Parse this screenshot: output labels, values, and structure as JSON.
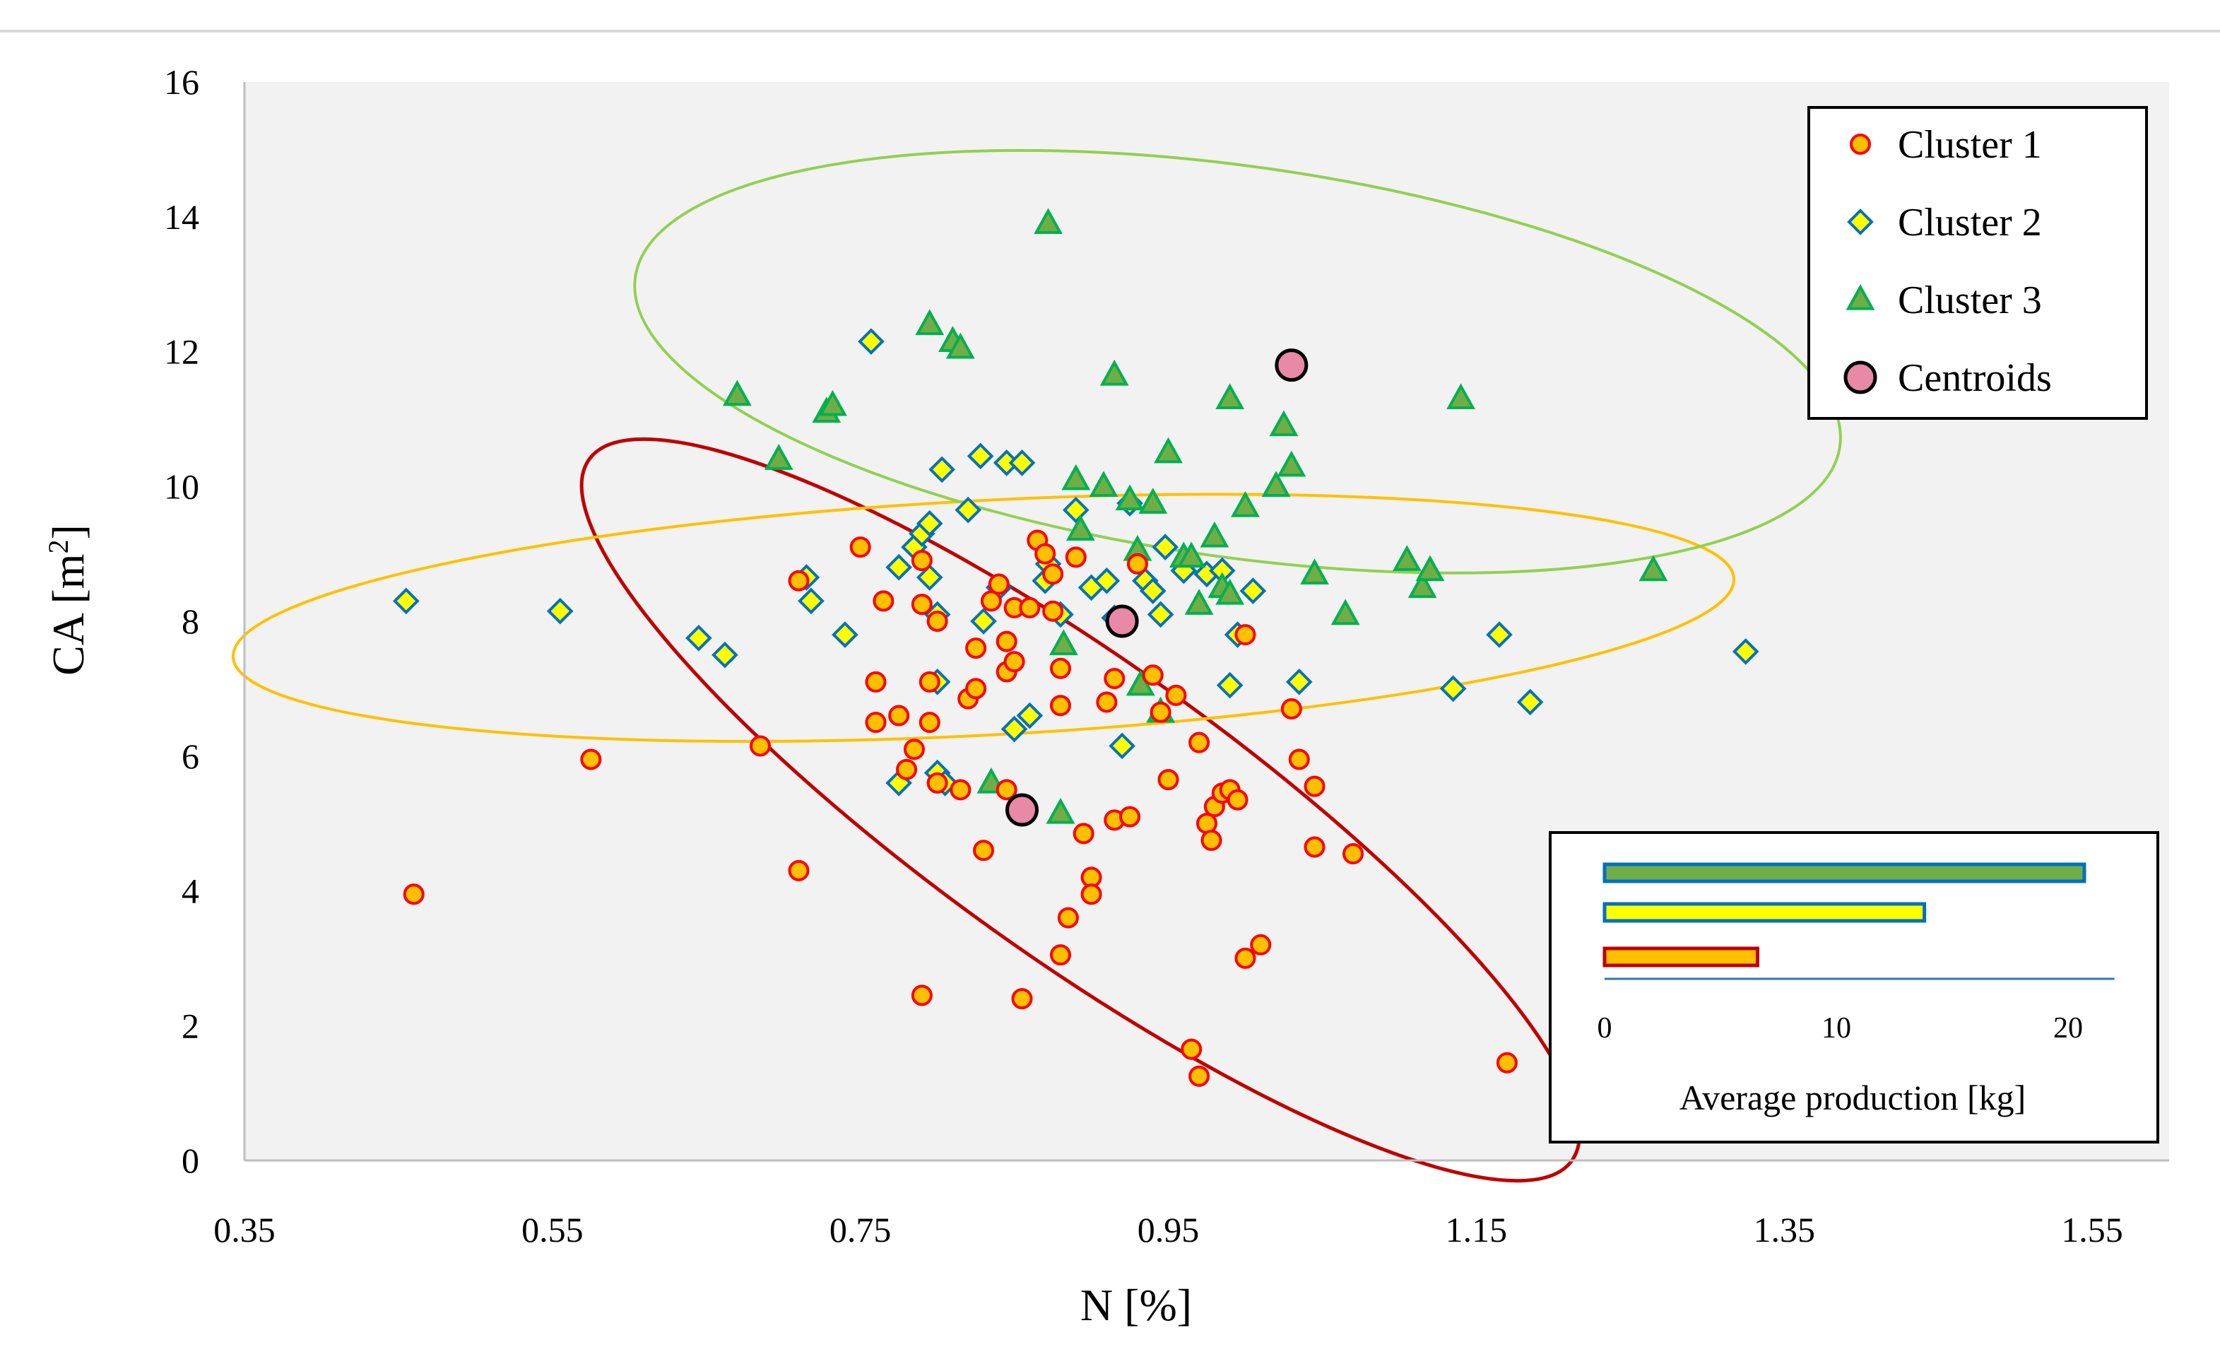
{
  "chart_data": {
    "type": "scatter",
    "xlabel": "N [%]",
    "ylabel": "CA [m²]",
    "ylabel_parts": {
      "base": "CA [m",
      "sup": "2",
      "close": "]"
    },
    "xlim": [
      0.35,
      1.6
    ],
    "ylim": [
      0,
      16
    ],
    "x_ticks": [
      0.35,
      0.55,
      0.75,
      0.95,
      1.15,
      1.35,
      1.55
    ],
    "x_tick_labels": [
      "0.35",
      "0.55",
      "0.75",
      "0.95",
      "1.15",
      "1.35",
      "1.55"
    ],
    "y_ticks": [
      0,
      2,
      4,
      6,
      8,
      10,
      12,
      14,
      16
    ],
    "y_tick_labels": [
      "0",
      "2",
      "4",
      "6",
      "8",
      "10",
      "12",
      "14",
      "16"
    ],
    "grid": false,
    "legend_position": "top-right",
    "legend": [
      "Cluster 1",
      "Cluster 2",
      "Cluster 3",
      "Centroids"
    ],
    "colors": {
      "cluster1_fill": "#ffc000",
      "cluster1_edge": "#ff0000",
      "cluster2_fill": "#ffff00",
      "cluster2_edge": "#0070c0",
      "cluster3_fill": "#70ad47",
      "cluster3_edge": "#00b050",
      "centroid_fill": "#e889a8",
      "centroid_edge": "#000000",
      "ellipse1": "#c00000",
      "ellipse2": "#ffc000",
      "ellipse3": "#92d050",
      "plot_bg": "#f2f2f2"
    },
    "series": [
      {
        "name": "Cluster 1",
        "marker": "circle",
        "points": [
          [
            0.46,
            3.95
          ],
          [
            0.575,
            5.95
          ],
          [
            0.685,
            6.15
          ],
          [
            0.71,
            8.6
          ],
          [
            0.71,
            4.3
          ],
          [
            0.75,
            9.1
          ],
          [
            0.76,
            7.1
          ],
          [
            0.76,
            6.5
          ],
          [
            0.765,
            8.3
          ],
          [
            0.775,
            6.6
          ],
          [
            0.78,
            5.8
          ],
          [
            0.785,
            6.1
          ],
          [
            0.79,
            8.9
          ],
          [
            0.79,
            8.25
          ],
          [
            0.795,
            7.1
          ],
          [
            0.795,
            6.5
          ],
          [
            0.8,
            8.0
          ],
          [
            0.8,
            5.6
          ],
          [
            0.79,
            2.45
          ],
          [
            0.815,
            5.5
          ],
          [
            0.82,
            6.85
          ],
          [
            0.825,
            7.6
          ],
          [
            0.825,
            7.0
          ],
          [
            0.83,
            4.6
          ],
          [
            0.835,
            8.3
          ],
          [
            0.84,
            8.55
          ],
          [
            0.845,
            7.7
          ],
          [
            0.845,
            7.25
          ],
          [
            0.845,
            5.5
          ],
          [
            0.85,
            8.2
          ],
          [
            0.85,
            7.4
          ],
          [
            0.855,
            2.4
          ],
          [
            0.86,
            8.2
          ],
          [
            0.865,
            9.2
          ],
          [
            0.87,
            9.0
          ],
          [
            0.875,
            8.7
          ],
          [
            0.875,
            8.15
          ],
          [
            0.88,
            7.3
          ],
          [
            0.88,
            6.75
          ],
          [
            0.88,
            3.05
          ],
          [
            0.885,
            3.6
          ],
          [
            0.89,
            8.95
          ],
          [
            0.895,
            4.85
          ],
          [
            0.9,
            4.2
          ],
          [
            0.9,
            3.95
          ],
          [
            0.91,
            6.8
          ],
          [
            0.915,
            7.15
          ],
          [
            0.915,
            5.05
          ],
          [
            0.925,
            5.1
          ],
          [
            0.93,
            8.85
          ],
          [
            0.94,
            7.2
          ],
          [
            0.945,
            6.65
          ],
          [
            0.95,
            5.65
          ],
          [
            0.955,
            6.9
          ],
          [
            0.965,
            1.65
          ],
          [
            0.97,
            6.2
          ],
          [
            0.975,
            5.0
          ],
          [
            0.97,
            1.25
          ],
          [
            0.978,
            4.75
          ],
          [
            0.98,
            5.25
          ],
          [
            0.985,
            5.45
          ],
          [
            0.99,
            5.5
          ],
          [
            0.995,
            5.35
          ],
          [
            1.0,
            3.0
          ],
          [
            1.0,
            7.8
          ],
          [
            1.01,
            3.2
          ],
          [
            1.03,
            6.7
          ],
          [
            1.035,
            5.95
          ],
          [
            1.045,
            5.55
          ],
          [
            1.045,
            4.65
          ],
          [
            1.07,
            4.55
          ],
          [
            1.17,
            1.45
          ]
        ]
      },
      {
        "name": "Cluster 2",
        "marker": "diamond",
        "points": [
          [
            0.455,
            8.3
          ],
          [
            0.555,
            8.15
          ],
          [
            0.645,
            7.75
          ],
          [
            0.662,
            7.5
          ],
          [
            0.715,
            8.65
          ],
          [
            0.718,
            8.3
          ],
          [
            0.74,
            7.8
          ],
          [
            0.757,
            12.15
          ],
          [
            0.775,
            8.8
          ],
          [
            0.775,
            5.6
          ],
          [
            0.785,
            9.1
          ],
          [
            0.79,
            9.3
          ],
          [
            0.795,
            9.45
          ],
          [
            0.795,
            8.65
          ],
          [
            0.8,
            8.1
          ],
          [
            0.8,
            7.1
          ],
          [
            0.803,
            10.25
          ],
          [
            0.8,
            5.75
          ],
          [
            0.805,
            5.6
          ],
          [
            0.82,
            9.65
          ],
          [
            0.828,
            10.45
          ],
          [
            0.83,
            8.0
          ],
          [
            0.84,
            8.5
          ],
          [
            0.845,
            10.35
          ],
          [
            0.855,
            10.35
          ],
          [
            0.85,
            6.4
          ],
          [
            0.86,
            6.6
          ],
          [
            0.87,
            8.6
          ],
          [
            0.872,
            8.85
          ],
          [
            0.88,
            8.1
          ],
          [
            0.89,
            9.65
          ],
          [
            0.9,
            8.5
          ],
          [
            0.91,
            8.6
          ],
          [
            0.915,
            8.05
          ],
          [
            0.92,
            6.15
          ],
          [
            0.925,
            9.75
          ],
          [
            0.935,
            8.6
          ],
          [
            0.94,
            8.45
          ],
          [
            0.945,
            8.1
          ],
          [
            0.948,
            9.1
          ],
          [
            0.96,
            8.75
          ],
          [
            0.975,
            8.7
          ],
          [
            0.985,
            8.75
          ],
          [
            0.99,
            7.05
          ],
          [
            0.995,
            7.8
          ],
          [
            1.005,
            8.45
          ],
          [
            1.035,
            7.1
          ],
          [
            1.135,
            7.0
          ],
          [
            1.165,
            7.8
          ],
          [
            1.185,
            6.8
          ],
          [
            1.325,
            7.55
          ]
        ]
      },
      {
        "name": "Cluster 3",
        "marker": "triangle",
        "points": [
          [
            0.67,
            11.35
          ],
          [
            0.697,
            10.4
          ],
          [
            0.728,
            11.1
          ],
          [
            0.732,
            11.2
          ],
          [
            0.795,
            12.4
          ],
          [
            0.81,
            12.15
          ],
          [
            0.815,
            12.05
          ],
          [
            0.835,
            5.6
          ],
          [
            0.872,
            13.9
          ],
          [
            0.88,
            5.15
          ],
          [
            0.882,
            7.65
          ],
          [
            0.89,
            10.1
          ],
          [
            0.893,
            9.35
          ],
          [
            0.908,
            10.0
          ],
          [
            0.915,
            11.65
          ],
          [
            0.925,
            9.8
          ],
          [
            0.93,
            9.05
          ],
          [
            0.932,
            7.05
          ],
          [
            0.94,
            9.75
          ],
          [
            0.945,
            6.65
          ],
          [
            0.95,
            10.5
          ],
          [
            0.96,
            8.95
          ],
          [
            0.965,
            8.95
          ],
          [
            0.97,
            8.25
          ],
          [
            0.98,
            9.25
          ],
          [
            0.985,
            8.5
          ],
          [
            0.99,
            8.4
          ],
          [
            0.99,
            11.3
          ],
          [
            1.0,
            9.7
          ],
          [
            1.02,
            10.0
          ],
          [
            1.025,
            10.9
          ],
          [
            1.03,
            10.3
          ],
          [
            1.045,
            8.7
          ],
          [
            1.065,
            8.1
          ],
          [
            1.105,
            8.9
          ],
          [
            1.115,
            8.5
          ],
          [
            1.12,
            8.75
          ],
          [
            1.14,
            11.3
          ],
          [
            1.265,
            8.75
          ]
        ]
      },
      {
        "name": "Centroids",
        "marker": "circle-large",
        "points": [
          [
            0.855,
            5.2
          ],
          [
            0.92,
            8.0
          ],
          [
            1.03,
            11.8
          ]
        ]
      }
    ],
    "ellipses": [
      {
        "name": "Cluster 1 region",
        "cx": 0.893,
        "cy": 5.2,
        "rx": 0.392,
        "ry": 2.2,
        "angle_deg": 35.5
      },
      {
        "name": "Cluster 2 region",
        "cx": 0.83,
        "cy": 8.05,
        "rx": 0.488,
        "ry": 1.74,
        "angle_deg": -3
      },
      {
        "name": "Cluster 3 region",
        "cx": 0.995,
        "cy": 11.85,
        "rx": 0.395,
        "ry": 2.9,
        "angle_deg": 8
      }
    ],
    "inset": {
      "type": "bar",
      "orientation": "horizontal",
      "title": "Average production [kg]",
      "xlim": [
        0,
        22
      ],
      "x_ticks": [
        0,
        10,
        20
      ],
      "x_tick_labels": [
        "0",
        "10",
        "20"
      ],
      "bars": [
        {
          "cluster": "Cluster 3",
          "value": 20.7
        },
        {
          "cluster": "Cluster 2",
          "value": 13.8
        },
        {
          "cluster": "Cluster 1",
          "value": 6.6
        }
      ]
    }
  }
}
